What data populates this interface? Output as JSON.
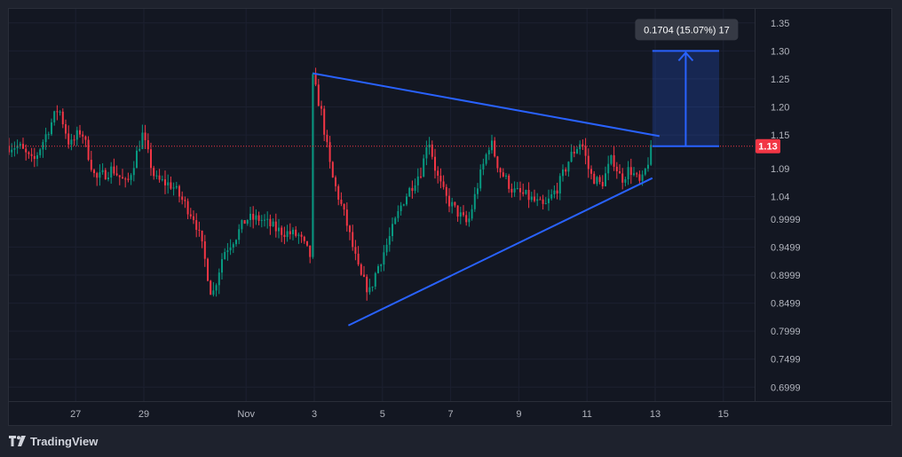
{
  "brand": {
    "name": "TradingView",
    "logo_icon": "tradingview-logo-icon"
  },
  "chart_data": {
    "type": "candlestick",
    "price_axis": {
      "ticks": [
        "1.35",
        "1.30",
        "1.25",
        "1.20",
        "1.15",
        "1.09",
        "1.04",
        "0.9999",
        "0.9499",
        "0.8999",
        "0.8499",
        "0.7999",
        "0.7499",
        "0.6999"
      ],
      "ylim": [
        0.675,
        1.375
      ]
    },
    "time_axis": {
      "ticks": [
        "27",
        "29",
        "Nov",
        "3",
        "5",
        "7",
        "9",
        "11",
        "13",
        "15"
      ],
      "tick_dates": [
        "2023-10-27",
        "2023-10-29",
        "2023-11-01",
        "2023-11-03",
        "2023-11-05",
        "2023-11-07",
        "2023-11-09",
        "2023-11-11",
        "2023-11-13",
        "2023-11-15"
      ],
      "xlim": [
        "2023-10-25T01:00",
        "2023-11-15T22:00"
      ]
    },
    "last_price": {
      "label": "1.13",
      "value": 1.13,
      "color": "#f23645"
    },
    "colors": {
      "up": "#089981",
      "down": "#f23645",
      "drawing": "#2962ff",
      "background": "#131722",
      "grid": "#1c2030",
      "axis_text": "#b2b5be"
    },
    "triangle": {
      "upper_line": {
        "start": {
          "date": "2023-11-02T23:00",
          "price": 1.26
        },
        "end": {
          "date": "2023-11-13T03:00",
          "price": 1.148
        }
      },
      "lower_line": {
        "start": {
          "date": "2023-11-04T00:00",
          "price": 0.81
        },
        "end": {
          "date": "2023-11-12T22:00",
          "price": 1.073
        }
      }
    },
    "measure": {
      "label": "0.1704 (15.07%) 17",
      "from_price": 1.13,
      "to_price": 1.3,
      "from_date": "2023-11-12T22:00",
      "to_date": "2023-11-14T21:00"
    },
    "path": [
      [
        "2023-10-25T01:00",
        1.13
      ],
      [
        "2023-10-25T08:00",
        1.13
      ],
      [
        "2023-10-25T18:00",
        1.1
      ],
      [
        "2023-10-26T03:00",
        1.15
      ],
      [
        "2023-10-26T12:00",
        1.2
      ],
      [
        "2023-10-26T20:00",
        1.13
      ],
      [
        "2023-10-27T04:00",
        1.16
      ],
      [
        "2023-10-27T14:00",
        1.07
      ],
      [
        "2023-10-28T02:00",
        1.09
      ],
      [
        "2023-10-28T12:00",
        1.06
      ],
      [
        "2023-10-28T23:00",
        1.15
      ],
      [
        "2023-10-29T08:00",
        1.07
      ],
      [
        "2023-10-29T20:00",
        1.06
      ],
      [
        "2023-10-30T04:00",
        1.03
      ],
      [
        "2023-10-30T12:00",
        1.0
      ],
      [
        "2023-10-30T18:00",
        0.94
      ],
      [
        "2023-10-31T00:00",
        0.86
      ],
      [
        "2023-10-31T08:00",
        0.94
      ],
      [
        "2023-10-31T17:00",
        0.97
      ],
      [
        "2023-11-01T00:00",
        1.0
      ],
      [
        "2023-11-01T10:00",
        1.0
      ],
      [
        "2023-11-01T22:00",
        0.98
      ],
      [
        "2023-11-02T13:00",
        0.97
      ],
      [
        "2023-11-02T22:00",
        0.93
      ],
      [
        "2023-11-02T23:00",
        1.25
      ],
      [
        "2023-11-03T05:00",
        1.19
      ],
      [
        "2023-11-03T12:00",
        1.08
      ],
      [
        "2023-11-03T22:00",
        1.0
      ],
      [
        "2023-11-04T08:00",
        0.9
      ],
      [
        "2023-11-04T15:00",
        0.87
      ],
      [
        "2023-11-04T20:00",
        0.91
      ],
      [
        "2023-11-05T04:00",
        0.96
      ],
      [
        "2023-11-05T14:00",
        1.03
      ],
      [
        "2023-11-05T23:00",
        1.07
      ],
      [
        "2023-11-06T04:00",
        1.09
      ],
      [
        "2023-11-06T08:00",
        1.15
      ],
      [
        "2023-11-06T14:00",
        1.08
      ],
      [
        "2023-11-06T20:00",
        1.04
      ],
      [
        "2023-11-07T02:00",
        1.02
      ],
      [
        "2023-11-07T12:00",
        0.99
      ],
      [
        "2023-11-07T20:00",
        1.07
      ],
      [
        "2023-11-08T04:00",
        1.14
      ],
      [
        "2023-11-08T10:00",
        1.09
      ],
      [
        "2023-11-08T20:00",
        1.05
      ],
      [
        "2023-11-09T06:00",
        1.04
      ],
      [
        "2023-11-09T18:00",
        1.02
      ],
      [
        "2023-11-10T04:00",
        1.06
      ],
      [
        "2023-11-10T12:00",
        1.11
      ],
      [
        "2023-11-10T20:00",
        1.14
      ],
      [
        "2023-11-11T02:00",
        1.08
      ],
      [
        "2023-11-11T10:00",
        1.06
      ],
      [
        "2023-11-11T18:00",
        1.11
      ],
      [
        "2023-11-12T00:00",
        1.07
      ],
      [
        "2023-11-12T06:00",
        1.09
      ],
      [
        "2023-11-12T14:00",
        1.06
      ],
      [
        "2023-11-12T22:00",
        1.13
      ]
    ]
  }
}
